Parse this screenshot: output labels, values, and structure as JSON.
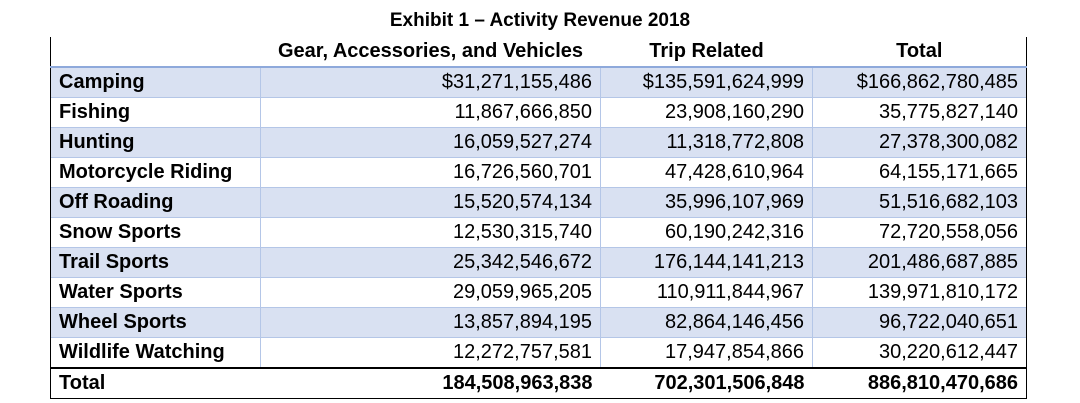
{
  "title": "Exhibit 1 – Activity Revenue 2018",
  "columns": [
    "",
    "Gear, Accessories, and Vehicles",
    "Trip Related",
    "Total"
  ],
  "rows": [
    {
      "activity": "Camping",
      "gear": "$31,271,155,486",
      "trip": "$135,591,624,999",
      "total": "$166,862,780,485"
    },
    {
      "activity": "Fishing",
      "gear": "11,867,666,850",
      "trip": "23,908,160,290",
      "total": "35,775,827,140"
    },
    {
      "activity": "Hunting",
      "gear": "16,059,527,274",
      "trip": "11,318,772,808",
      "total": "27,378,300,082"
    },
    {
      "activity": "Motorcycle Riding",
      "gear": "16,726,560,701",
      "trip": "47,428,610,964",
      "total": "64,155,171,665"
    },
    {
      "activity": "Off Roading",
      "gear": "15,520,574,134",
      "trip": "35,996,107,969",
      "total": "51,516,682,103"
    },
    {
      "activity": "Snow Sports",
      "gear": "12,530,315,740",
      "trip": "60,190,242,316",
      "total": "72,720,558,056"
    },
    {
      "activity": "Trail Sports",
      "gear": "25,342,546,672",
      "trip": "176,144,141,213",
      "total": "201,486,687,885"
    },
    {
      "activity": "Water Sports",
      "gear": "29,059,965,205",
      "trip": "110,911,844,967",
      "total": "139,971,810,172"
    },
    {
      "activity": "Wheel Sports",
      "gear": "13,857,894,195",
      "trip": "82,864,146,456",
      "total": "96,722,040,651"
    },
    {
      "activity": "Wildlife Watching",
      "gear": "12,272,757,581",
      "trip": "17,947,854,866",
      "total": "30,220,612,447"
    }
  ],
  "total_row": {
    "activity": "Total",
    "gear": "184,508,963,838",
    "trip": "702,301,506,848",
    "total": "886,810,470,686"
  },
  "colors": {
    "band": "#d9e1f2",
    "rule": "#8ea9db",
    "border": "#000000"
  }
}
